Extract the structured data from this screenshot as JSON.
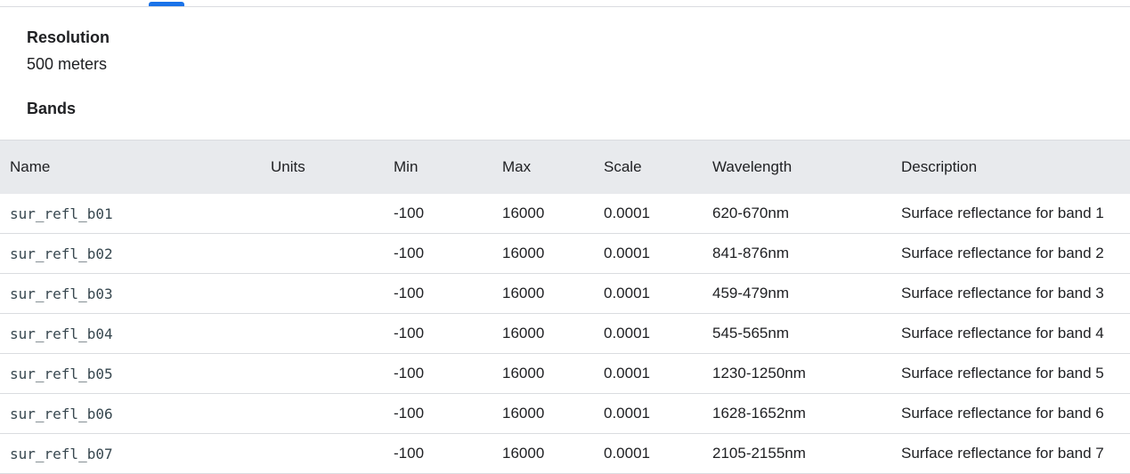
{
  "resolution": {
    "heading": "Resolution",
    "value": "500 meters"
  },
  "bands": {
    "heading": "Bands",
    "columns": [
      "Name",
      "Units",
      "Min",
      "Max",
      "Scale",
      "Wavelength",
      "Description"
    ],
    "rows": [
      {
        "name": "sur_refl_b01",
        "units": "",
        "min": "-100",
        "max": "16000",
        "scale": "0.0001",
        "wavelength": "620-670nm",
        "description": "Surface reflectance for band 1"
      },
      {
        "name": "sur_refl_b02",
        "units": "",
        "min": "-100",
        "max": "16000",
        "scale": "0.0001",
        "wavelength": "841-876nm",
        "description": "Surface reflectance for band 2"
      },
      {
        "name": "sur_refl_b03",
        "units": "",
        "min": "-100",
        "max": "16000",
        "scale": "0.0001",
        "wavelength": "459-479nm",
        "description": "Surface reflectance for band 3"
      },
      {
        "name": "sur_refl_b04",
        "units": "",
        "min": "-100",
        "max": "16000",
        "scale": "0.0001",
        "wavelength": "545-565nm",
        "description": "Surface reflectance for band 4"
      },
      {
        "name": "sur_refl_b05",
        "units": "",
        "min": "-100",
        "max": "16000",
        "scale": "0.0001",
        "wavelength": "1230-1250nm",
        "description": "Surface reflectance for band 5"
      },
      {
        "name": "sur_refl_b06",
        "units": "",
        "min": "-100",
        "max": "16000",
        "scale": "0.0001",
        "wavelength": "1628-1652nm",
        "description": "Surface reflectance for band 6"
      },
      {
        "name": "sur_refl_b07",
        "units": "",
        "min": "-100",
        "max": "16000",
        "scale": "0.0001",
        "wavelength": "2105-2155nm",
        "description": "Surface reflectance for band 7"
      }
    ]
  },
  "colors": {
    "accent": "#1a73e8",
    "header_bg": "#e8eaed",
    "divider": "#dadce0"
  }
}
